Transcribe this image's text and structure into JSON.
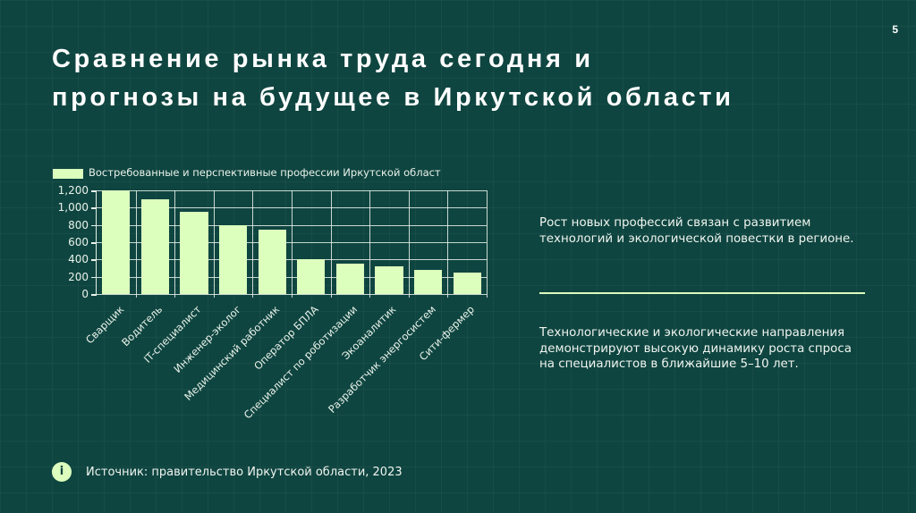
{
  "slide": {
    "page_number": "5",
    "title_lines": [
      "Сравнение рынка труда сегодня и",
      "прогнозы на будущее в Иркутской области"
    ],
    "side_text": {
      "paragraph_1": "Рост новых профессий связан с развитием технологий и экологической повестки в регионе.",
      "paragraph_2": "Технологические и экологические направления демонстрируют высокую динамику роста спроса на специалистов в ближайшие 5–10 лет."
    },
    "source": {
      "icon": "info-icon",
      "icon_glyph": "i",
      "text": "Источник: правительство Иркутской области, 2023"
    },
    "colors": {
      "background": "#0f4540",
      "bar": "#dcffbe",
      "text": "#ffffff"
    }
  },
  "chart_data": {
    "type": "bar",
    "title": "",
    "legend": [
      "Востребованные и перспективные профессии Иркутской област"
    ],
    "legend_position": "top-left",
    "categories": [
      "Сварщик",
      "Водитель",
      "IT-специалист",
      "Инженер-эколог",
      "Медицинский работник",
      "Оператор БПЛА",
      "Специалист по роботизации",
      "Экоаналитик",
      "Разработчик энергосистем",
      "Сити-фермер"
    ],
    "series": [
      {
        "name": "Востребованные и перспективные профессии Иркутской области",
        "values": [
          1200,
          1100,
          950,
          800,
          750,
          400,
          350,
          320,
          280,
          250
        ]
      }
    ],
    "xlabel": "",
    "ylabel": "",
    "ylim": [
      0,
      1200
    ],
    "yticks": [
      "0",
      "200",
      "400",
      "600",
      "800",
      "1,000",
      "1,200"
    ],
    "grid": true,
    "xtick_rotation": -45
  }
}
